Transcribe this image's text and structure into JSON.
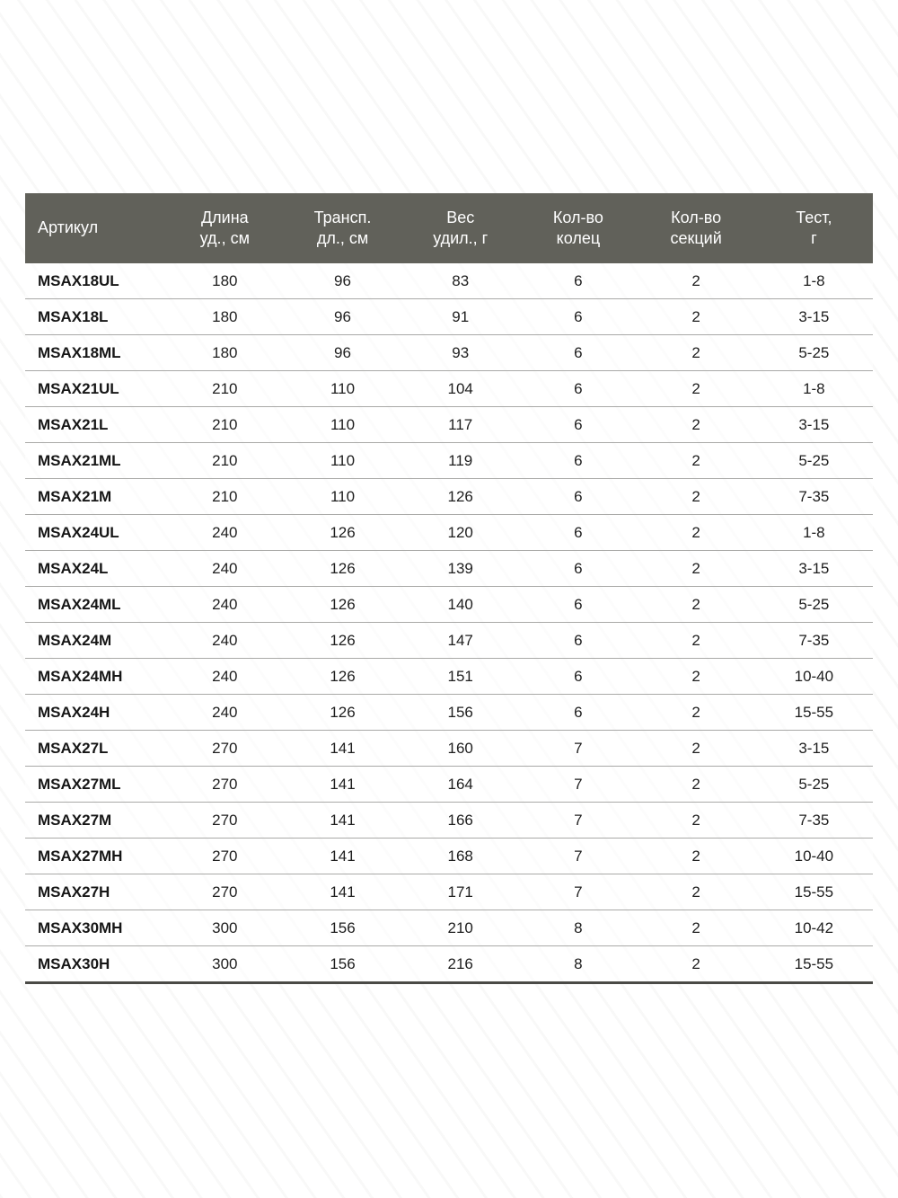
{
  "chart_data": {
    "type": "table",
    "title": "",
    "columns": [
      {
        "lines": [
          "Артикул"
        ]
      },
      {
        "lines": [
          "Длина",
          "уд., см"
        ]
      },
      {
        "lines": [
          "Трансп.",
          "дл., см"
        ]
      },
      {
        "lines": [
          "Вес",
          "удил.,  г"
        ]
      },
      {
        "lines": [
          "Кол-во",
          "колец"
        ]
      },
      {
        "lines": [
          "Кол-во",
          "секций"
        ]
      },
      {
        "lines": [
          "Тест,",
          "г"
        ]
      }
    ],
    "rows": [
      [
        "MSAX18UL",
        "180",
        "96",
        "83",
        "6",
        "2",
        "1-8"
      ],
      [
        "MSAX18L",
        "180",
        "96",
        "91",
        "6",
        "2",
        "3-15"
      ],
      [
        "MSAX18ML",
        "180",
        "96",
        "93",
        "6",
        "2",
        "5-25"
      ],
      [
        "MSAX21UL",
        "210",
        "110",
        "104",
        "6",
        "2",
        "1-8"
      ],
      [
        "MSAX21L",
        "210",
        "110",
        "117",
        "6",
        "2",
        "3-15"
      ],
      [
        "MSAX21ML",
        "210",
        "110",
        "119",
        "6",
        "2",
        "5-25"
      ],
      [
        "MSAX21M",
        "210",
        "110",
        "126",
        "6",
        "2",
        "7-35"
      ],
      [
        "MSAX24UL",
        "240",
        "126",
        "120",
        "6",
        "2",
        "1-8"
      ],
      [
        "MSAX24L",
        "240",
        "126",
        "139",
        "6",
        "2",
        "3-15"
      ],
      [
        "MSAX24ML",
        "240",
        "126",
        "140",
        "6",
        "2",
        "5-25"
      ],
      [
        "MSAX24M",
        "240",
        "126",
        "147",
        "6",
        "2",
        "7-35"
      ],
      [
        "MSAX24MH",
        "240",
        "126",
        "151",
        "6",
        "2",
        "10-40"
      ],
      [
        "MSAX24H",
        "240",
        "126",
        "156",
        "6",
        "2",
        "15-55"
      ],
      [
        "MSAX27L",
        "270",
        "141",
        "160",
        "7",
        "2",
        "3-15"
      ],
      [
        "MSAX27ML",
        "270",
        "141",
        "164",
        "7",
        "2",
        "5-25"
      ],
      [
        "MSAX27M",
        "270",
        "141",
        "166",
        "7",
        "2",
        "7-35"
      ],
      [
        "MSAX27MH",
        "270",
        "141",
        "168",
        "7",
        "2",
        "10-40"
      ],
      [
        "MSAX27H",
        "270",
        "141",
        "171",
        "7",
        "2",
        "15-55"
      ],
      [
        "MSAX30MH",
        "300",
        "156",
        "210",
        "8",
        "2",
        "10-42"
      ],
      [
        "MSAX30H",
        "300",
        "156",
        "216",
        "8",
        "2",
        "15-55"
      ]
    ],
    "layout": {
      "header_bg": "#61615a",
      "header_text_color": "#ffffff",
      "row_separator_color": "#a9a9a7",
      "bottom_border_color": "#4a4a46",
      "first_column_align": "left",
      "other_columns_align": "center"
    }
  }
}
